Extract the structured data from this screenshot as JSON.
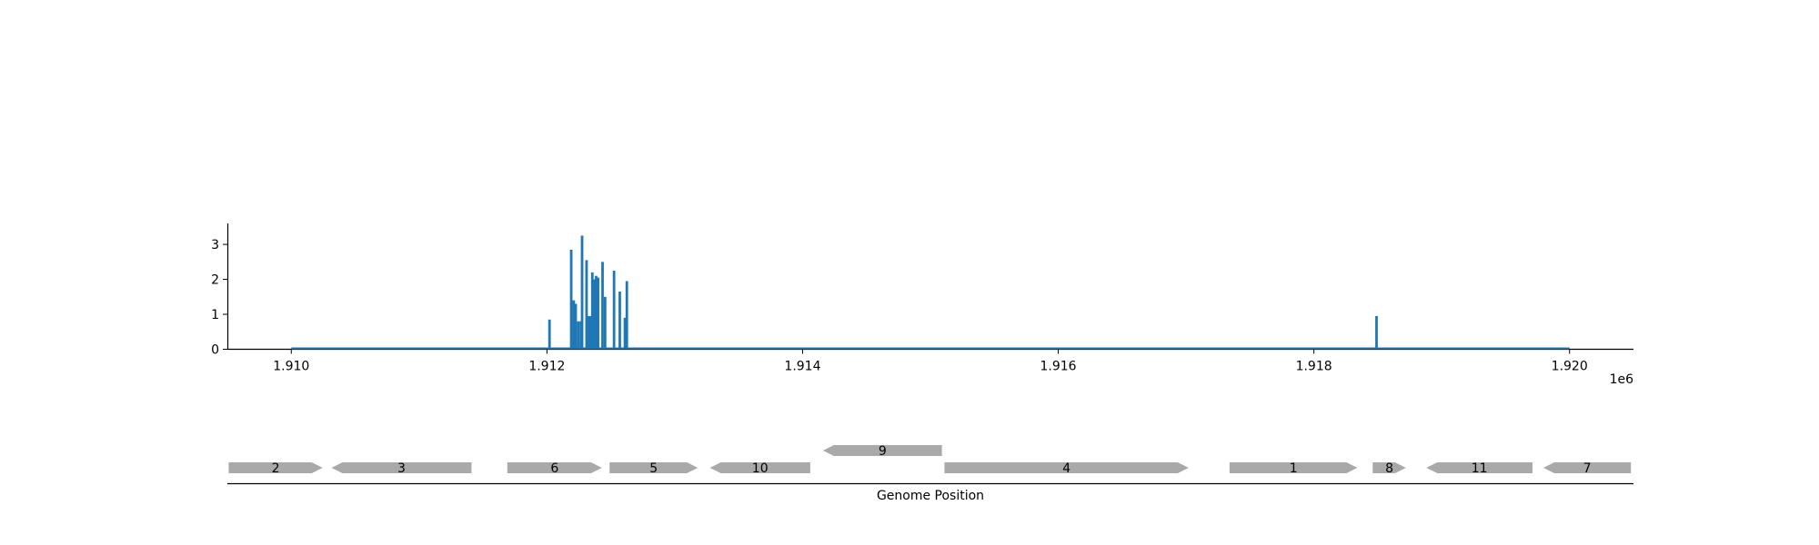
{
  "chart_data": {
    "type": "bar",
    "title": "",
    "xlabel": "",
    "ylabel": "",
    "x_offset_label": "1e6",
    "xlim": [
      1909500,
      1920500
    ],
    "ylim": [
      0,
      3.6
    ],
    "x_ticks": [
      {
        "value": 1910000,
        "label": "1.910"
      },
      {
        "value": 1912000,
        "label": "1.912"
      },
      {
        "value": 1914000,
        "label": "1.914"
      },
      {
        "value": 1916000,
        "label": "1.916"
      },
      {
        "value": 1918000,
        "label": "1.918"
      },
      {
        "value": 1920000,
        "label": "1.920"
      }
    ],
    "y_ticks": [
      {
        "value": 0,
        "label": "0"
      },
      {
        "value": 1,
        "label": "1"
      },
      {
        "value": 2,
        "label": "2"
      },
      {
        "value": 3,
        "label": "3"
      }
    ],
    "baseline": [
      1910000,
      1920000
    ],
    "color": "#1f77b4",
    "bars": [
      {
        "x": 1912020,
        "y": 0.85
      },
      {
        "x": 1912190,
        "y": 2.85
      },
      {
        "x": 1912210,
        "y": 1.4
      },
      {
        "x": 1912225,
        "y": 1.3
      },
      {
        "x": 1912245,
        "y": 0.8
      },
      {
        "x": 1912265,
        "y": 0.8
      },
      {
        "x": 1912275,
        "y": 3.25
      },
      {
        "x": 1912310,
        "y": 2.55
      },
      {
        "x": 1912325,
        "y": 0.95
      },
      {
        "x": 1912340,
        "y": 0.95
      },
      {
        "x": 1912355,
        "y": 2.2
      },
      {
        "x": 1912370,
        "y": 2.0
      },
      {
        "x": 1912385,
        "y": 2.1
      },
      {
        "x": 1912400,
        "y": 2.05
      },
      {
        "x": 1912435,
        "y": 2.5
      },
      {
        "x": 1912455,
        "y": 1.5
      },
      {
        "x": 1912525,
        "y": 2.25
      },
      {
        "x": 1912570,
        "y": 1.65
      },
      {
        "x": 1912610,
        "y": 0.9
      },
      {
        "x": 1912625,
        "y": 1.95
      },
      {
        "x": 1918490,
        "y": 0.95
      }
    ]
  },
  "genome_track": {
    "xlabel": "Genome Position",
    "color": "#a9a9a9",
    "genes": [
      {
        "label": "2",
        "start": 1909510,
        "end": 1910245,
        "strand": "+",
        "row": 0
      },
      {
        "label": "3",
        "start": 1910315,
        "end": 1911410,
        "strand": "-",
        "row": 0
      },
      {
        "label": "6",
        "start": 1911690,
        "end": 1912430,
        "strand": "+",
        "row": 0
      },
      {
        "label": "5",
        "start": 1912490,
        "end": 1913180,
        "strand": "+",
        "row": 0
      },
      {
        "label": "10",
        "start": 1913275,
        "end": 1914060,
        "strand": "-",
        "row": 0
      },
      {
        "label": "9",
        "start": 1914160,
        "end": 1915090,
        "strand": "-",
        "row": 1
      },
      {
        "label": "4",
        "start": 1915110,
        "end": 1917020,
        "strand": "+",
        "row": 0
      },
      {
        "label": "1",
        "start": 1917340,
        "end": 1918340,
        "strand": "+",
        "row": 0
      },
      {
        "label": "8",
        "start": 1918460,
        "end": 1918720,
        "strand": "+",
        "row": 0
      },
      {
        "label": "11",
        "start": 1918880,
        "end": 1919710,
        "strand": "-",
        "row": 0
      },
      {
        "label": "7",
        "start": 1919795,
        "end": 1920480,
        "strand": "-",
        "row": 0
      }
    ]
  }
}
